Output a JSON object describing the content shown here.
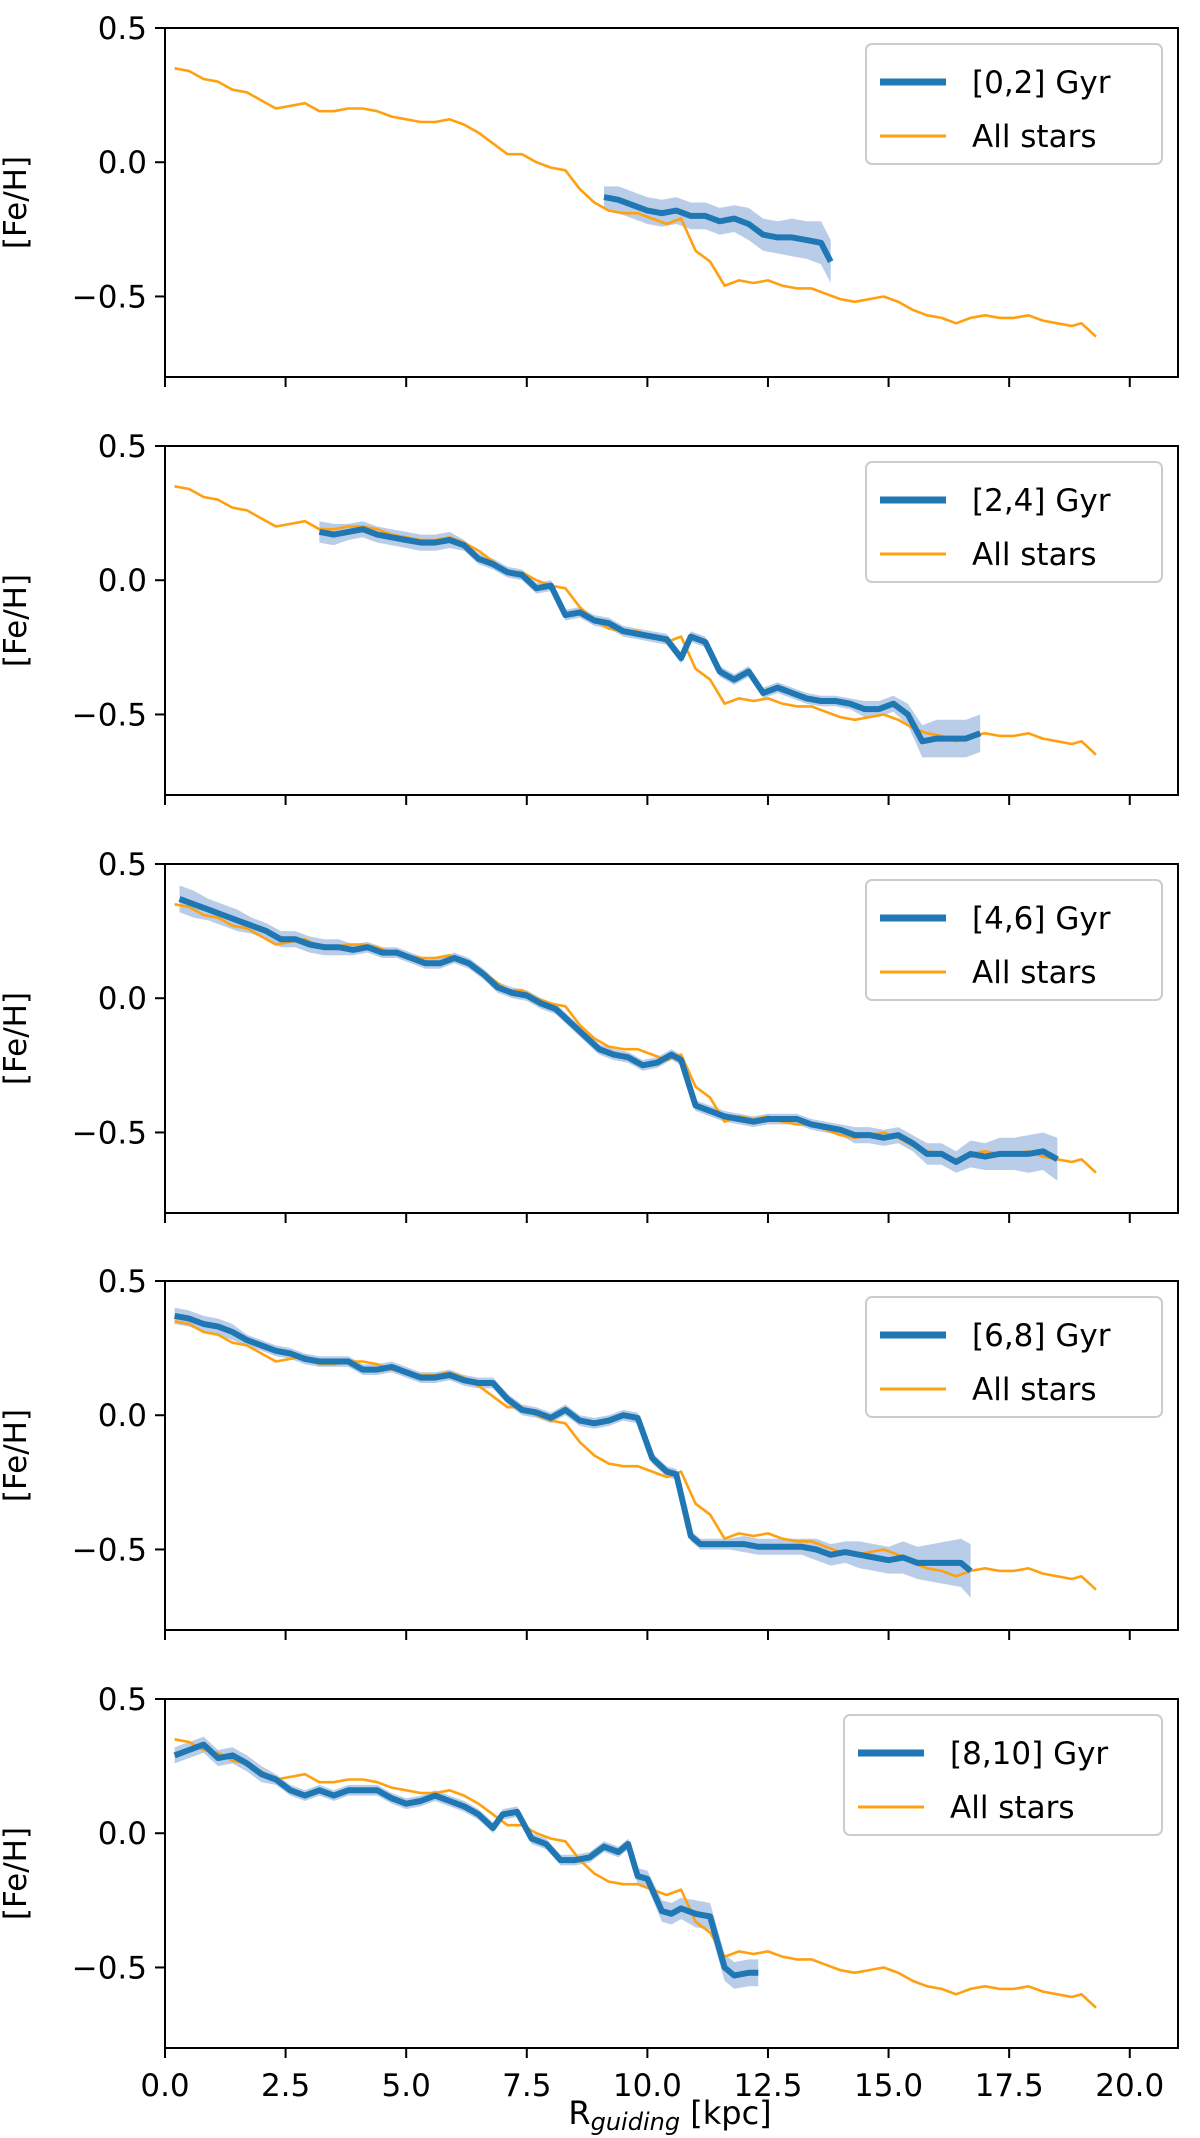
{
  "chart_data": {
    "type": "line",
    "shared_xlabel_prefix": "R",
    "shared_xlabel_subscript": "guiding",
    "shared_xlabel_suffix": " [kpc]",
    "xlim": [
      0,
      21
    ],
    "x_ticks": [
      0.0,
      2.5,
      5.0,
      7.5,
      10.0,
      12.5,
      15.0,
      17.5,
      20.0
    ],
    "x_tick_labels": [
      "0.0",
      "2.5",
      "5.0",
      "7.5",
      "10.0",
      "12.5",
      "15.0",
      "17.5",
      "20.0"
    ],
    "ylabel": "[Fe/H]",
    "ylim": [
      -0.8,
      0.5
    ],
    "y_ticks": [
      0.5,
      0.0,
      -0.5
    ],
    "y_tick_labels": [
      "0.5",
      "0.0",
      "−0.5"
    ],
    "legend_position": "top-right",
    "colors": {
      "bin": "#1f77b4",
      "band": "#aec4e4",
      "all": "#ffa010"
    },
    "all_stars": {
      "name": "All stars",
      "x": [
        0.2,
        0.5,
        0.8,
        1.1,
        1.4,
        1.7,
        2.0,
        2.3,
        2.6,
        2.9,
        3.2,
        3.5,
        3.8,
        4.1,
        4.4,
        4.7,
        5.0,
        5.3,
        5.6,
        5.9,
        6.2,
        6.5,
        6.8,
        7.1,
        7.4,
        7.7,
        8.0,
        8.3,
        8.6,
        8.9,
        9.2,
        9.5,
        9.8,
        10.1,
        10.4,
        10.7,
        11.0,
        11.3,
        11.6,
        11.9,
        12.2,
        12.5,
        12.8,
        13.1,
        13.4,
        13.7,
        14.0,
        14.3,
        14.6,
        14.9,
        15.2,
        15.5,
        15.8,
        16.1,
        16.4,
        16.7,
        17.0,
        17.3,
        17.6,
        17.9,
        18.2,
        18.5,
        18.8,
        19.0,
        19.3
      ],
      "y": [
        0.35,
        0.34,
        0.31,
        0.3,
        0.27,
        0.26,
        0.23,
        0.2,
        0.21,
        0.22,
        0.19,
        0.19,
        0.2,
        0.2,
        0.19,
        0.17,
        0.16,
        0.15,
        0.15,
        0.16,
        0.14,
        0.11,
        0.07,
        0.03,
        0.03,
        0.0,
        -0.02,
        -0.03,
        -0.1,
        -0.15,
        -0.18,
        -0.19,
        -0.19,
        -0.21,
        -0.23,
        -0.21,
        -0.33,
        -0.37,
        -0.46,
        -0.44,
        -0.45,
        -0.44,
        -0.46,
        -0.47,
        -0.47,
        -0.49,
        -0.51,
        -0.52,
        -0.51,
        -0.5,
        -0.52,
        -0.55,
        -0.57,
        -0.58,
        -0.6,
        -0.58,
        -0.57,
        -0.58,
        -0.58,
        -0.57,
        -0.59,
        -0.6,
        -0.61,
        -0.6,
        -0.65
      ]
    },
    "panels": [
      {
        "label": "[0,2] Gyr",
        "x": [
          9.1,
          9.4,
          9.7,
          10.0,
          10.3,
          10.6,
          10.9,
          11.2,
          11.5,
          11.8,
          12.1,
          12.4,
          12.7,
          13.0,
          13.3,
          13.6,
          13.8
        ],
        "y": [
          -0.13,
          -0.14,
          -0.16,
          -0.18,
          -0.19,
          -0.18,
          -0.2,
          -0.2,
          -0.22,
          -0.21,
          -0.23,
          -0.27,
          -0.28,
          -0.28,
          -0.29,
          -0.3,
          -0.37
        ],
        "err": [
          0.04,
          0.05,
          0.05,
          0.05,
          0.05,
          0.05,
          0.05,
          0.05,
          0.05,
          0.05,
          0.06,
          0.06,
          0.06,
          0.07,
          0.07,
          0.08,
          0.08
        ]
      },
      {
        "label": "[2,4] Gyr",
        "x": [
          3.2,
          3.5,
          3.8,
          4.1,
          4.4,
          4.7,
          5.0,
          5.3,
          5.6,
          5.9,
          6.2,
          6.5,
          6.8,
          7.1,
          7.4,
          7.7,
          8.0,
          8.3,
          8.6,
          8.9,
          9.2,
          9.5,
          9.8,
          10.1,
          10.4,
          10.7,
          10.9,
          11.2,
          11.5,
          11.8,
          12.1,
          12.4,
          12.7,
          13.0,
          13.3,
          13.6,
          13.9,
          14.2,
          14.5,
          14.8,
          15.1,
          15.4,
          15.7,
          16.0,
          16.3,
          16.6,
          16.9
        ],
        "y": [
          0.18,
          0.17,
          0.18,
          0.19,
          0.17,
          0.16,
          0.15,
          0.14,
          0.14,
          0.15,
          0.13,
          0.08,
          0.06,
          0.03,
          0.02,
          -0.03,
          -0.02,
          -0.13,
          -0.12,
          -0.15,
          -0.16,
          -0.19,
          -0.2,
          -0.21,
          -0.22,
          -0.29,
          -0.21,
          -0.23,
          -0.34,
          -0.37,
          -0.34,
          -0.42,
          -0.4,
          -0.42,
          -0.44,
          -0.45,
          -0.45,
          -0.46,
          -0.48,
          -0.48,
          -0.46,
          -0.5,
          -0.6,
          -0.59,
          -0.59,
          -0.59,
          -0.57
        ],
        "err": [
          0.04,
          0.04,
          0.03,
          0.03,
          0.03,
          0.03,
          0.03,
          0.03,
          0.03,
          0.03,
          0.02,
          0.02,
          0.02,
          0.02,
          0.02,
          0.02,
          0.02,
          0.02,
          0.02,
          0.02,
          0.02,
          0.02,
          0.02,
          0.02,
          0.02,
          0.02,
          0.02,
          0.02,
          0.02,
          0.02,
          0.02,
          0.02,
          0.02,
          0.02,
          0.02,
          0.02,
          0.02,
          0.02,
          0.03,
          0.03,
          0.03,
          0.04,
          0.06,
          0.07,
          0.07,
          0.07,
          0.07
        ]
      },
      {
        "label": "[4,6] Gyr",
        "x": [
          0.3,
          0.6,
          0.9,
          1.2,
          1.5,
          1.8,
          2.1,
          2.4,
          2.7,
          3.0,
          3.3,
          3.6,
          3.9,
          4.2,
          4.5,
          4.8,
          5.1,
          5.4,
          5.7,
          6.0,
          6.3,
          6.6,
          6.9,
          7.2,
          7.5,
          7.8,
          8.1,
          8.4,
          8.7,
          9.0,
          9.3,
          9.6,
          9.9,
          10.2,
          10.5,
          10.7,
          11.0,
          11.3,
          11.6,
          11.9,
          12.2,
          12.5,
          12.8,
          13.1,
          13.4,
          13.7,
          14.0,
          14.3,
          14.6,
          14.9,
          15.2,
          15.5,
          15.8,
          16.1,
          16.4,
          16.7,
          17.0,
          17.3,
          17.6,
          17.9,
          18.2,
          18.5
        ],
        "y": [
          0.37,
          0.35,
          0.33,
          0.31,
          0.29,
          0.27,
          0.25,
          0.22,
          0.22,
          0.2,
          0.19,
          0.19,
          0.18,
          0.19,
          0.17,
          0.17,
          0.15,
          0.13,
          0.13,
          0.15,
          0.13,
          0.09,
          0.04,
          0.02,
          0.01,
          -0.02,
          -0.04,
          -0.09,
          -0.14,
          -0.19,
          -0.21,
          -0.22,
          -0.25,
          -0.24,
          -0.21,
          -0.23,
          -0.4,
          -0.42,
          -0.44,
          -0.45,
          -0.46,
          -0.45,
          -0.45,
          -0.45,
          -0.47,
          -0.48,
          -0.49,
          -0.51,
          -0.51,
          -0.52,
          -0.51,
          -0.54,
          -0.58,
          -0.58,
          -0.61,
          -0.58,
          -0.59,
          -0.58,
          -0.58,
          -0.58,
          -0.57,
          -0.6
        ],
        "err": [
          0.05,
          0.05,
          0.04,
          0.04,
          0.04,
          0.03,
          0.03,
          0.03,
          0.03,
          0.03,
          0.03,
          0.03,
          0.02,
          0.02,
          0.02,
          0.02,
          0.02,
          0.02,
          0.02,
          0.02,
          0.02,
          0.02,
          0.02,
          0.02,
          0.02,
          0.02,
          0.02,
          0.02,
          0.02,
          0.02,
          0.02,
          0.02,
          0.02,
          0.02,
          0.02,
          0.02,
          0.02,
          0.02,
          0.02,
          0.02,
          0.02,
          0.02,
          0.02,
          0.02,
          0.02,
          0.02,
          0.02,
          0.03,
          0.03,
          0.03,
          0.03,
          0.03,
          0.04,
          0.04,
          0.04,
          0.05,
          0.05,
          0.06,
          0.06,
          0.07,
          0.07,
          0.08
        ]
      },
      {
        "label": "[6,8] Gyr",
        "x": [
          0.2,
          0.5,
          0.8,
          1.1,
          1.4,
          1.7,
          2.0,
          2.3,
          2.6,
          2.9,
          3.2,
          3.5,
          3.8,
          4.1,
          4.4,
          4.7,
          5.0,
          5.3,
          5.6,
          5.9,
          6.2,
          6.5,
          6.8,
          7.1,
          7.4,
          7.7,
          8.0,
          8.3,
          8.6,
          8.9,
          9.2,
          9.5,
          9.8,
          10.1,
          10.4,
          10.6,
          10.9,
          11.1,
          11.4,
          11.7,
          12.0,
          12.3,
          12.6,
          12.9,
          13.2,
          13.5,
          13.8,
          14.1,
          14.4,
          14.7,
          15.0,
          15.3,
          15.6,
          15.9,
          16.2,
          16.5,
          16.7
        ],
        "y": [
          0.37,
          0.36,
          0.34,
          0.33,
          0.31,
          0.28,
          0.26,
          0.24,
          0.23,
          0.21,
          0.2,
          0.2,
          0.2,
          0.17,
          0.17,
          0.18,
          0.16,
          0.14,
          0.14,
          0.15,
          0.13,
          0.12,
          0.12,
          0.06,
          0.02,
          0.01,
          -0.01,
          0.02,
          -0.02,
          -0.03,
          -0.02,
          0.0,
          -0.01,
          -0.16,
          -0.21,
          -0.22,
          -0.45,
          -0.48,
          -0.48,
          -0.48,
          -0.48,
          -0.49,
          -0.49,
          -0.49,
          -0.49,
          -0.5,
          -0.52,
          -0.51,
          -0.52,
          -0.53,
          -0.54,
          -0.53,
          -0.55,
          -0.55,
          -0.55,
          -0.55,
          -0.58
        ],
        "err": [
          0.03,
          0.03,
          0.03,
          0.03,
          0.03,
          0.02,
          0.02,
          0.02,
          0.02,
          0.02,
          0.02,
          0.02,
          0.02,
          0.02,
          0.02,
          0.02,
          0.02,
          0.02,
          0.02,
          0.02,
          0.02,
          0.02,
          0.02,
          0.02,
          0.02,
          0.02,
          0.02,
          0.02,
          0.02,
          0.02,
          0.02,
          0.02,
          0.02,
          0.02,
          0.02,
          0.02,
          0.02,
          0.02,
          0.02,
          0.02,
          0.03,
          0.03,
          0.03,
          0.03,
          0.03,
          0.04,
          0.04,
          0.04,
          0.05,
          0.05,
          0.05,
          0.06,
          0.06,
          0.07,
          0.08,
          0.09,
          0.1
        ]
      },
      {
        "label": "[8,10] Gyr",
        "x": [
          0.2,
          0.5,
          0.8,
          1.1,
          1.4,
          1.7,
          2.0,
          2.3,
          2.6,
          2.9,
          3.2,
          3.5,
          3.8,
          4.1,
          4.4,
          4.7,
          5.0,
          5.3,
          5.6,
          5.9,
          6.2,
          6.5,
          6.8,
          7.0,
          7.3,
          7.6,
          7.9,
          8.2,
          8.5,
          8.8,
          9.1,
          9.4,
          9.6,
          9.8,
          10.0,
          10.3,
          10.5,
          10.7,
          11.0,
          11.3,
          11.6,
          11.8,
          12.1,
          12.3
        ],
        "y": [
          0.29,
          0.31,
          0.33,
          0.28,
          0.29,
          0.26,
          0.22,
          0.2,
          0.16,
          0.14,
          0.16,
          0.14,
          0.16,
          0.16,
          0.16,
          0.13,
          0.11,
          0.12,
          0.14,
          0.12,
          0.1,
          0.07,
          0.02,
          0.07,
          0.08,
          -0.02,
          -0.04,
          -0.1,
          -0.1,
          -0.09,
          -0.05,
          -0.07,
          -0.04,
          -0.16,
          -0.17,
          -0.29,
          -0.3,
          -0.28,
          -0.3,
          -0.31,
          -0.5,
          -0.53,
          -0.52,
          -0.52
        ],
        "err": [
          0.03,
          0.03,
          0.03,
          0.03,
          0.03,
          0.03,
          0.03,
          0.02,
          0.02,
          0.02,
          0.02,
          0.02,
          0.02,
          0.02,
          0.02,
          0.02,
          0.02,
          0.02,
          0.02,
          0.02,
          0.02,
          0.02,
          0.02,
          0.02,
          0.02,
          0.02,
          0.02,
          0.02,
          0.02,
          0.02,
          0.02,
          0.02,
          0.02,
          0.03,
          0.03,
          0.04,
          0.04,
          0.04,
          0.05,
          0.05,
          0.05,
          0.05,
          0.05,
          0.05
        ]
      }
    ]
  }
}
